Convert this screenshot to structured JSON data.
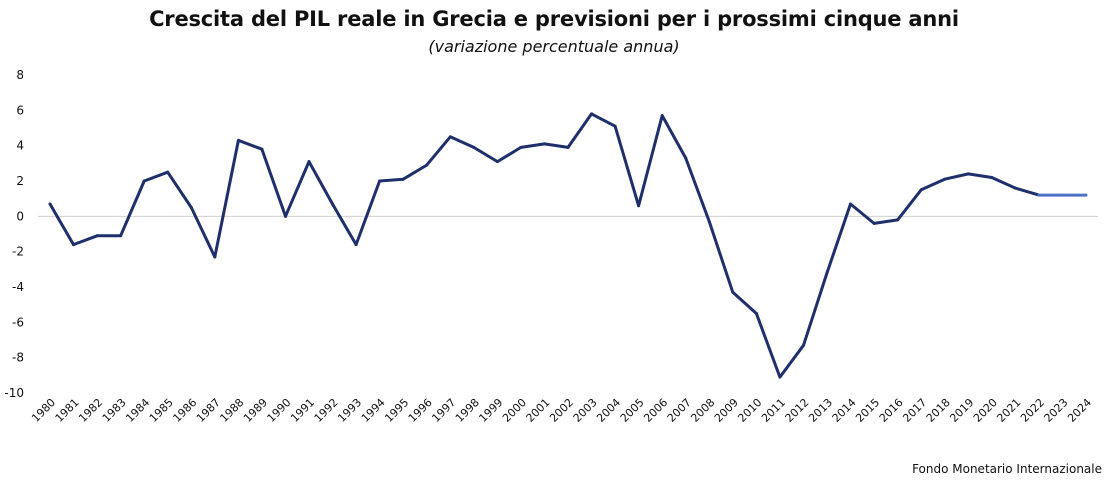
{
  "header": {
    "title": "Crescita del PIL reale in Grecia e previsioni per i prossimi cinque anni",
    "subtitle": "(variazione percentuale annua)"
  },
  "footer": {
    "source": "Fondo Monetario Internazionale"
  },
  "colors": {
    "line": "#1f2f6b",
    "forecast_line": "#4f72c8",
    "zero_line": "#d0d0d0",
    "text": "#111111"
  },
  "chart_data": {
    "type": "line",
    "title": "Crescita del PIL reale in Grecia e previsioni per i prossimi cinque anni",
    "subtitle": "(variazione percentuale annua)",
    "xlabel": "",
    "ylabel": "",
    "ylim": [
      -10,
      8
    ],
    "yticks": [
      8,
      6,
      4,
      2,
      0,
      -2,
      -4,
      -6,
      -8,
      -10
    ],
    "grid": false,
    "legend": "none",
    "x": [
      "1980",
      "1981",
      "1982",
      "1983",
      "1984",
      "1985",
      "1986",
      "1987",
      "1988",
      "1989",
      "1990",
      "1991",
      "1992",
      "1993",
      "1994",
      "1995",
      "1996",
      "1997",
      "1998",
      "1999",
      "2000",
      "2001",
      "2002",
      "2003",
      "2004",
      "2005",
      "2006",
      "2007",
      "2008",
      "2009",
      "2010",
      "2011",
      "2012",
      "2013",
      "2014",
      "2015",
      "2016",
      "2017",
      "2018",
      "2019",
      "2020",
      "2021",
      "2022",
      "2023",
      "2024"
    ],
    "series": [
      {
        "values": [
          0.7,
          -1.6,
          -1.1,
          -1.1,
          2.0,
          2.5,
          0.5,
          -2.3,
          4.3,
          3.8,
          0.0,
          3.1,
          0.7,
          -1.6,
          2.0,
          2.1,
          2.9,
          4.5,
          3.9,
          3.1,
          3.9,
          4.1,
          3.9,
          5.8,
          5.1,
          0.6,
          5.7,
          3.3,
          -0.3,
          -4.3,
          -5.5,
          -9.1,
          -7.3,
          -3.2,
          0.7,
          -0.4,
          -0.2,
          1.5,
          2.1,
          2.4,
          2.2,
          1.6,
          1.2,
          1.2,
          1.2
        ],
        "forecast_from_index": 42
      }
    ]
  }
}
